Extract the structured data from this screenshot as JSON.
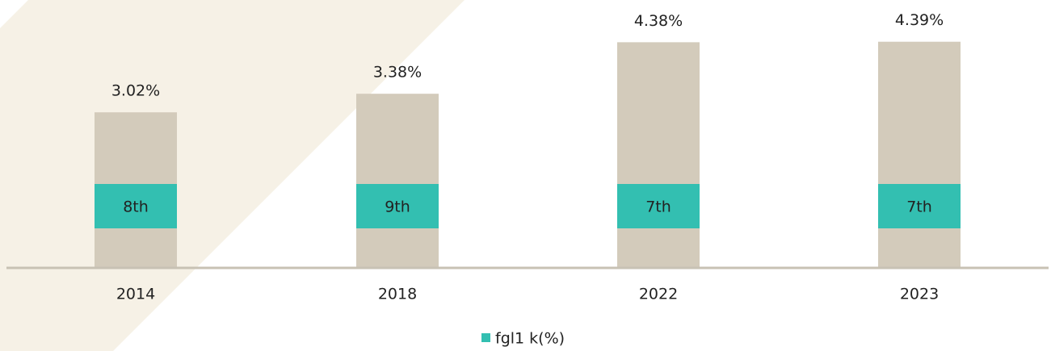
{
  "chart_data": {
    "type": "bar",
    "categories": [
      "2014",
      "2018",
      "2022",
      "2023"
    ],
    "series": [
      {
        "name": "fgl1 k(%)",
        "color": "#d3cbbb",
        "values": [
          3.02,
          3.38,
          4.38,
          4.39
        ],
        "value_labels": [
          "3.02%",
          "3.38%",
          "4.38%",
          "4.39%"
        ]
      }
    ],
    "ranks": [
      "8th",
      "9th",
      "7th",
      "7th"
    ],
    "rank_color": "#33bfb1",
    "ylim": [
      0,
      5.2
    ]
  }
}
